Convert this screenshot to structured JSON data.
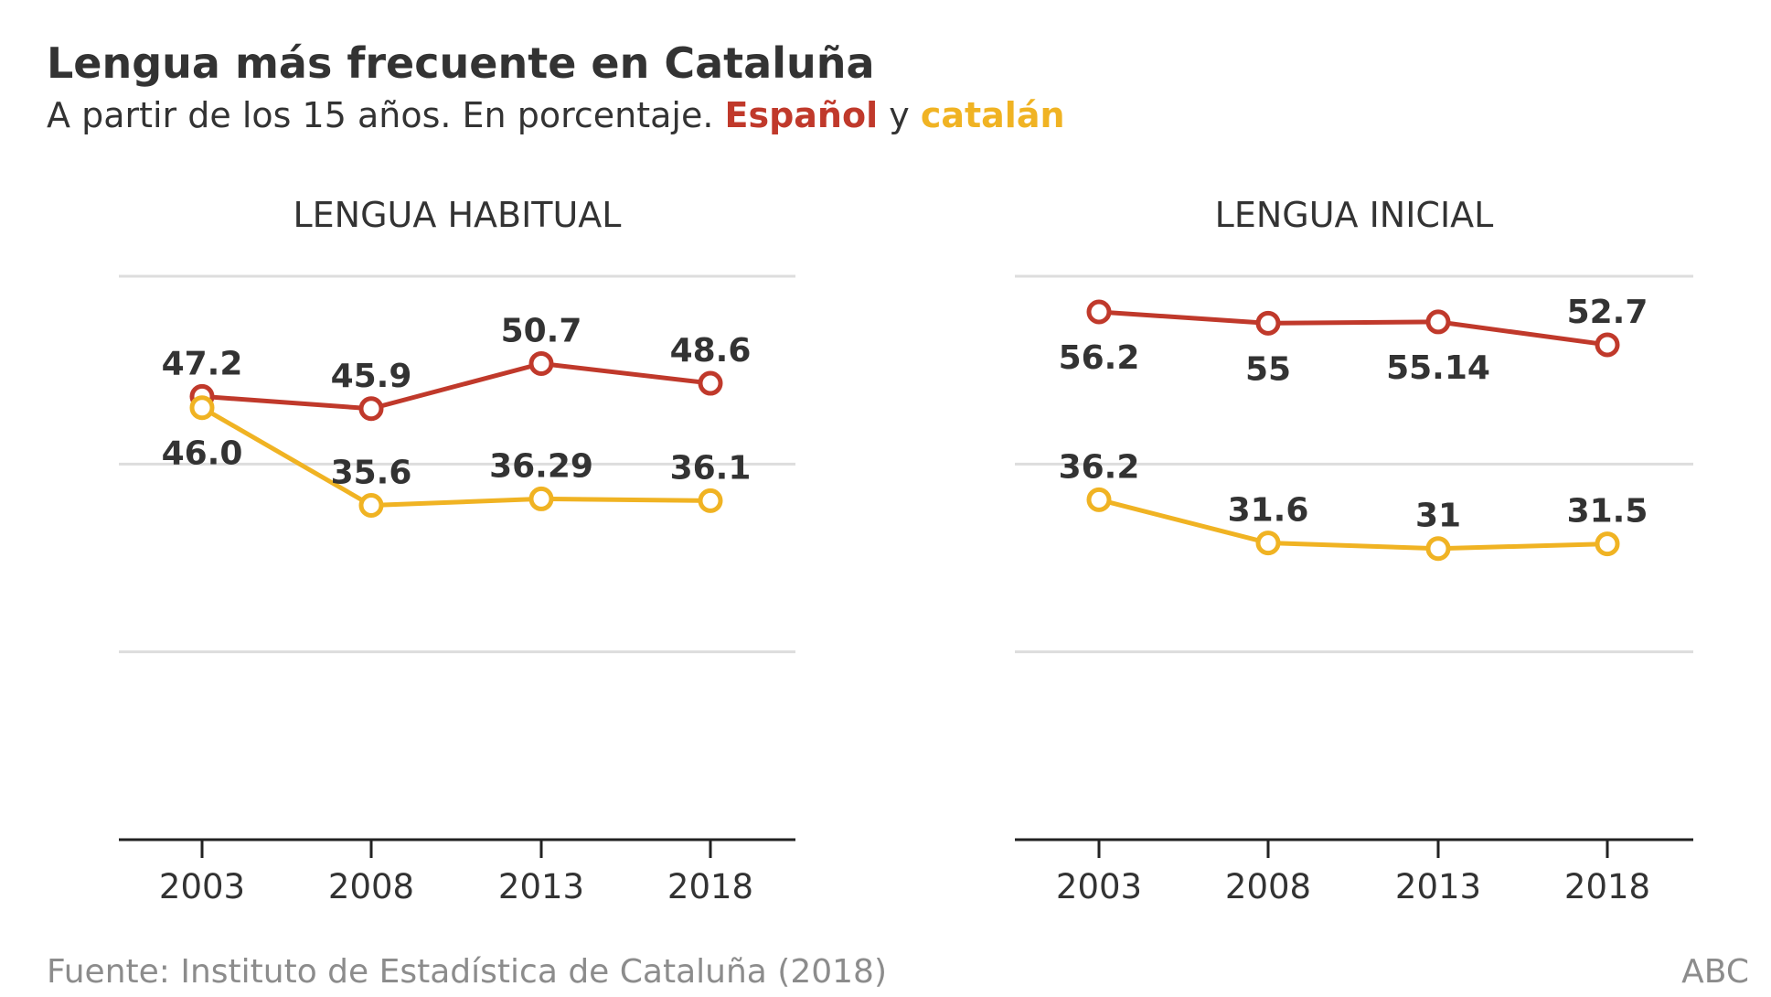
{
  "title": "Lengua más frecuente en Cataluña",
  "subtitle": {
    "prefix": "A partir de los 15 años. En porcentaje.",
    "series1_label": "Español",
    "connector": "y",
    "series2_label": "catalán"
  },
  "source": "Fuente: Instituto de Estadística de Cataluña (2018)",
  "credit": "ABC",
  "colors": {
    "espanol": "#c0392b",
    "catalan": "#f0b323",
    "text": "#333333",
    "grid": "#dddddd",
    "axis": "#222222",
    "muted": "#8c8c8c"
  },
  "chart_data": [
    {
      "type": "line",
      "title": "LENGUA HABITUAL",
      "categories": [
        "2003",
        "2008",
        "2013",
        "2018"
      ],
      "ylim": [
        0,
        60
      ],
      "grid": true,
      "series": [
        {
          "name": "Español",
          "values": [
            47.2,
            45.9,
            50.7,
            48.6
          ],
          "labels": [
            "47.2",
            "45.9",
            "50.7",
            "48.6"
          ],
          "label_pos": [
            "above",
            "above",
            "above",
            "above"
          ]
        },
        {
          "name": "catalán",
          "values": [
            46.0,
            35.6,
            36.29,
            36.1
          ],
          "labels": [
            "46.0",
            "35.6",
            "36.29",
            "36.1"
          ],
          "label_pos": [
            "below",
            "above",
            "above",
            "above"
          ]
        }
      ]
    },
    {
      "type": "line",
      "title": "LENGUA INICIAL",
      "categories": [
        "2003",
        "2008",
        "2013",
        "2018"
      ],
      "ylim": [
        0,
        60
      ],
      "grid": true,
      "series": [
        {
          "name": "Español",
          "values": [
            56.2,
            55,
            55.14,
            52.7
          ],
          "labels": [
            "56.2",
            "55",
            "55.14",
            "52.7"
          ],
          "label_pos": [
            "below",
            "below",
            "below",
            "above"
          ]
        },
        {
          "name": "catalán",
          "values": [
            36.2,
            31.6,
            31,
            31.5
          ],
          "labels": [
            "36.2",
            "31.6",
            "31",
            "31.5"
          ],
          "label_pos": [
            "above",
            "above",
            "above",
            "above"
          ]
        }
      ]
    }
  ]
}
